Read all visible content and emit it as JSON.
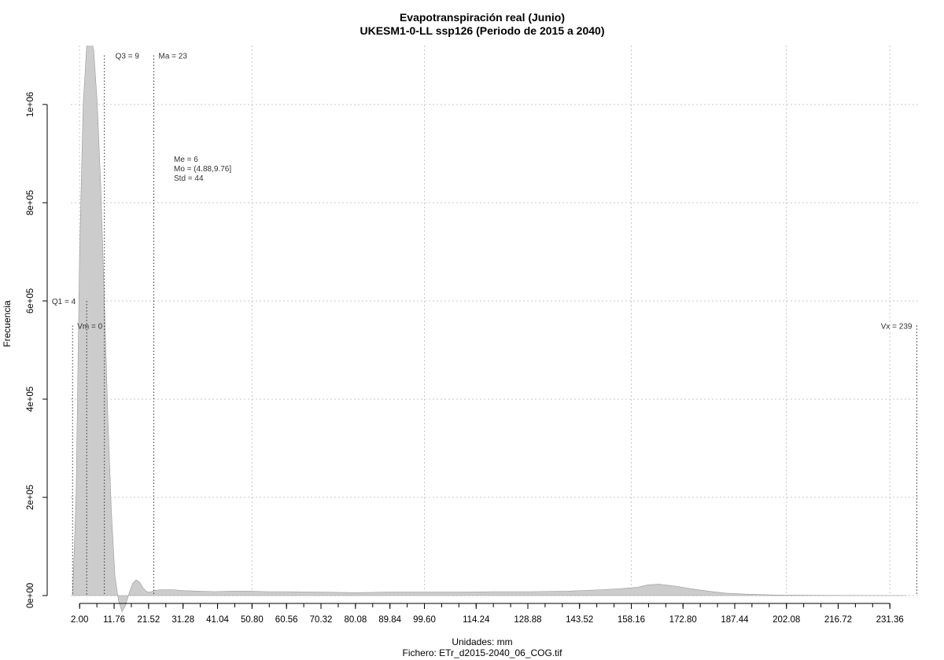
{
  "chart_data": {
    "type": "area",
    "title": "Evapotranspiración real (Junio)",
    "subtitle": "UKESM1-0-LL ssp126 (Periodo de 2015 a 2040)",
    "xlabel": "Unidades: mm",
    "ylabel": "Frecuencia",
    "footer": "Fichero: ETr_d2015-2040_06_COG.tif",
    "xlim": [
      -0.5,
      240
    ],
    "ylim": [
      0,
      1120000
    ],
    "x_ticks": [
      2.0,
      11.76,
      21.52,
      31.28,
      41.04,
      50.8,
      60.56,
      70.32,
      80.08,
      89.84,
      99.6,
      114.24,
      128.88,
      143.52,
      158.16,
      172.8,
      187.44,
      202.08,
      216.72,
      231.36
    ],
    "x_tick_labels": [
      "2.00",
      "11.76",
      "21.52",
      "31.28",
      "41.04",
      "50.80",
      "60.56",
      "70.32",
      "80.08",
      "89.84",
      "99.60",
      "114.24",
      "128.88",
      "143.52",
      "158.16",
      "172.80",
      "187.44",
      "202.08",
      "216.72",
      "231.36"
    ],
    "x_minor_step": 4.88,
    "y_ticks": [
      0,
      200000,
      400000,
      600000,
      800000,
      1000000
    ],
    "y_tick_labels": [
      "0e+00",
      "2e+05",
      "4e+05",
      "6e+05",
      "8e+05",
      "1e+06"
    ],
    "grid": true,
    "fill_color": "#cccccc",
    "outline_color": "#999999",
    "density": {
      "x": [
        0,
        1,
        2,
        3,
        4,
        5,
        6,
        7,
        8,
        9,
        10,
        11,
        12,
        13,
        14,
        15,
        16,
        17,
        18,
        19,
        20,
        21,
        22,
        23,
        24,
        25,
        28,
        32,
        36,
        40,
        45,
        50,
        55,
        60,
        70,
        80,
        90,
        100,
        110,
        120,
        130,
        140,
        150,
        155,
        160,
        163,
        166,
        170,
        175,
        180,
        185,
        190,
        195,
        200,
        210,
        220,
        230,
        236
      ],
      "y": [
        0,
        200000,
        700000,
        1000000,
        1120000,
        1140000,
        1110000,
        1000000,
        830000,
        600000,
        360000,
        170000,
        40000,
        -10000,
        -33000,
        -20000,
        5000,
        25000,
        32000,
        27000,
        15000,
        8000,
        7000,
        10000,
        11000,
        12000,
        12000,
        10000,
        9000,
        8000,
        9000,
        9000,
        8000,
        8000,
        7000,
        6000,
        7000,
        7000,
        7000,
        8000,
        8000,
        9000,
        12000,
        14000,
        17000,
        22000,
        23000,
        20000,
        14000,
        9000,
        5000,
        3000,
        2000,
        1000,
        500,
        300,
        100,
        0
      ]
    },
    "annotations": [
      {
        "label": "Vm = 0",
        "x": 0,
        "y_top": 550000
      },
      {
        "label": "Q1 = 4",
        "x": 4,
        "y_top": 600000
      },
      {
        "label": "Q3 = 9",
        "x": 9,
        "y_top": 1100000
      },
      {
        "label": "Ma = 23",
        "x": 23,
        "y_top": 1100000
      },
      {
        "label": "Vx = 239",
        "x": 239,
        "y_top": 550000
      }
    ],
    "stats_box": [
      "Me = 6",
      "Mo = (4.88,9.76]",
      "Std = 44"
    ]
  }
}
